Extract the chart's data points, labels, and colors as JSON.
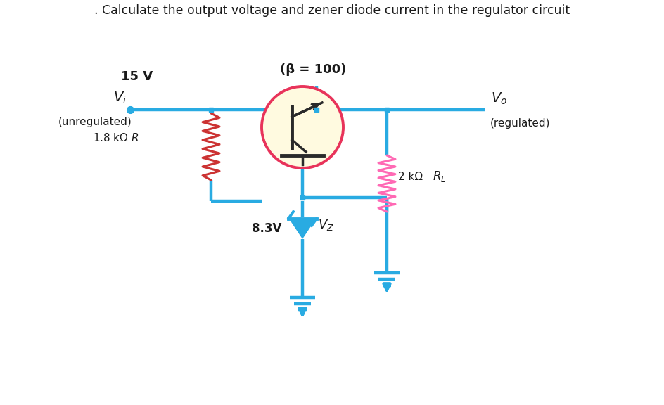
{
  "title": ". Calculate the output voltage and zener diode current in the regulator circuit",
  "title_fontsize": 12.5,
  "bg_color": "#ffffff",
  "wire_color": "#29ABE2",
  "resistor_color_r": "#CC3333",
  "resistor_color_rl": "#FF69B4",
  "transistor_fill": "#FFFAE0",
  "transistor_border": "#E8335A",
  "text_color": "#1a1a1a",
  "beta_label": "(β = 100)",
  "vi_label": "V",
  "vi_sub": "i",
  "vo_label": "V",
  "vo_sub": "o",
  "unregulated_label": "(unregulated)",
  "regulated_label": "(regulated)",
  "r_label": "1.8 kΩ",
  "r_suffix": "R",
  "rl_label": "2 kΩ",
  "rl_suffix": "R",
  "rl_sub": "L",
  "vz_label": "8.3V",
  "vz_sub_label": "V",
  "vz_sub_sub": "Z",
  "voltage_label": "15 V"
}
